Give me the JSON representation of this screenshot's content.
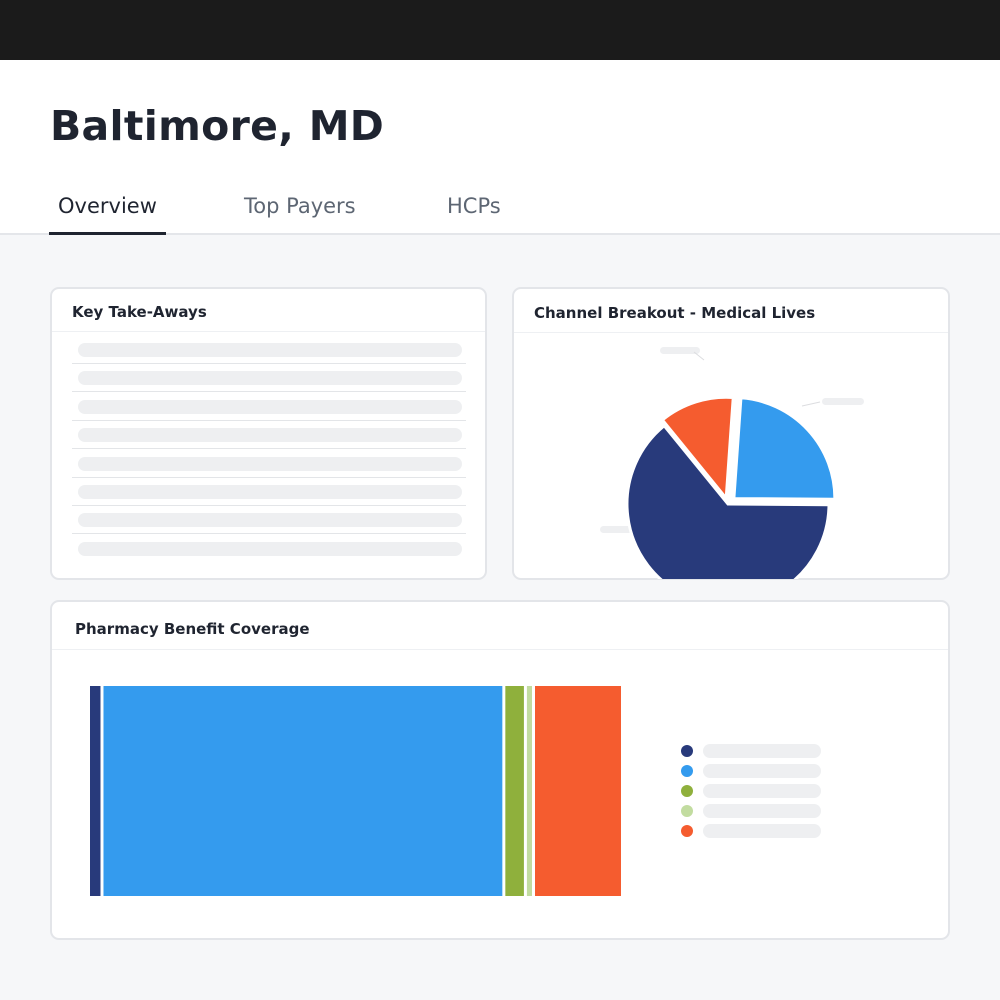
{
  "header": {
    "title": "Baltimore, MD",
    "tabs": [
      {
        "label": "Overview",
        "active": true
      },
      {
        "label": "Top Payers",
        "active": false
      },
      {
        "label": "HCPs",
        "active": false
      }
    ]
  },
  "key_takeaways": {
    "title": "Key Take-Aways"
  },
  "channel_breakout": {
    "title": "Channel Breakout - Medical Lives",
    "chart_data": {
      "type": "pie",
      "slices": [
        {
          "value": 24,
          "color": "#349bee"
        },
        {
          "value": 64,
          "color": "#283a7b"
        },
        {
          "value": 12,
          "color": "#f55c2f"
        }
      ]
    }
  },
  "pharmacy_coverage": {
    "title": "Pharmacy Benefit Coverage",
    "chart_data": {
      "type": "bar",
      "stacked": true,
      "segments": [
        {
          "value": 2.5,
          "color": "#283a7b"
        },
        {
          "value": 74.5,
          "color": "#349bee"
        },
        {
          "value": 4.0,
          "color": "#8fb03c"
        },
        {
          "value": 1.5,
          "color": "#c2dca0"
        },
        {
          "value": 16.5,
          "color": "#f55c2f"
        }
      ]
    },
    "legend_colors": [
      "#283a7b",
      "#349bee",
      "#8fb03c",
      "#c2dca0",
      "#f55c2f"
    ]
  }
}
